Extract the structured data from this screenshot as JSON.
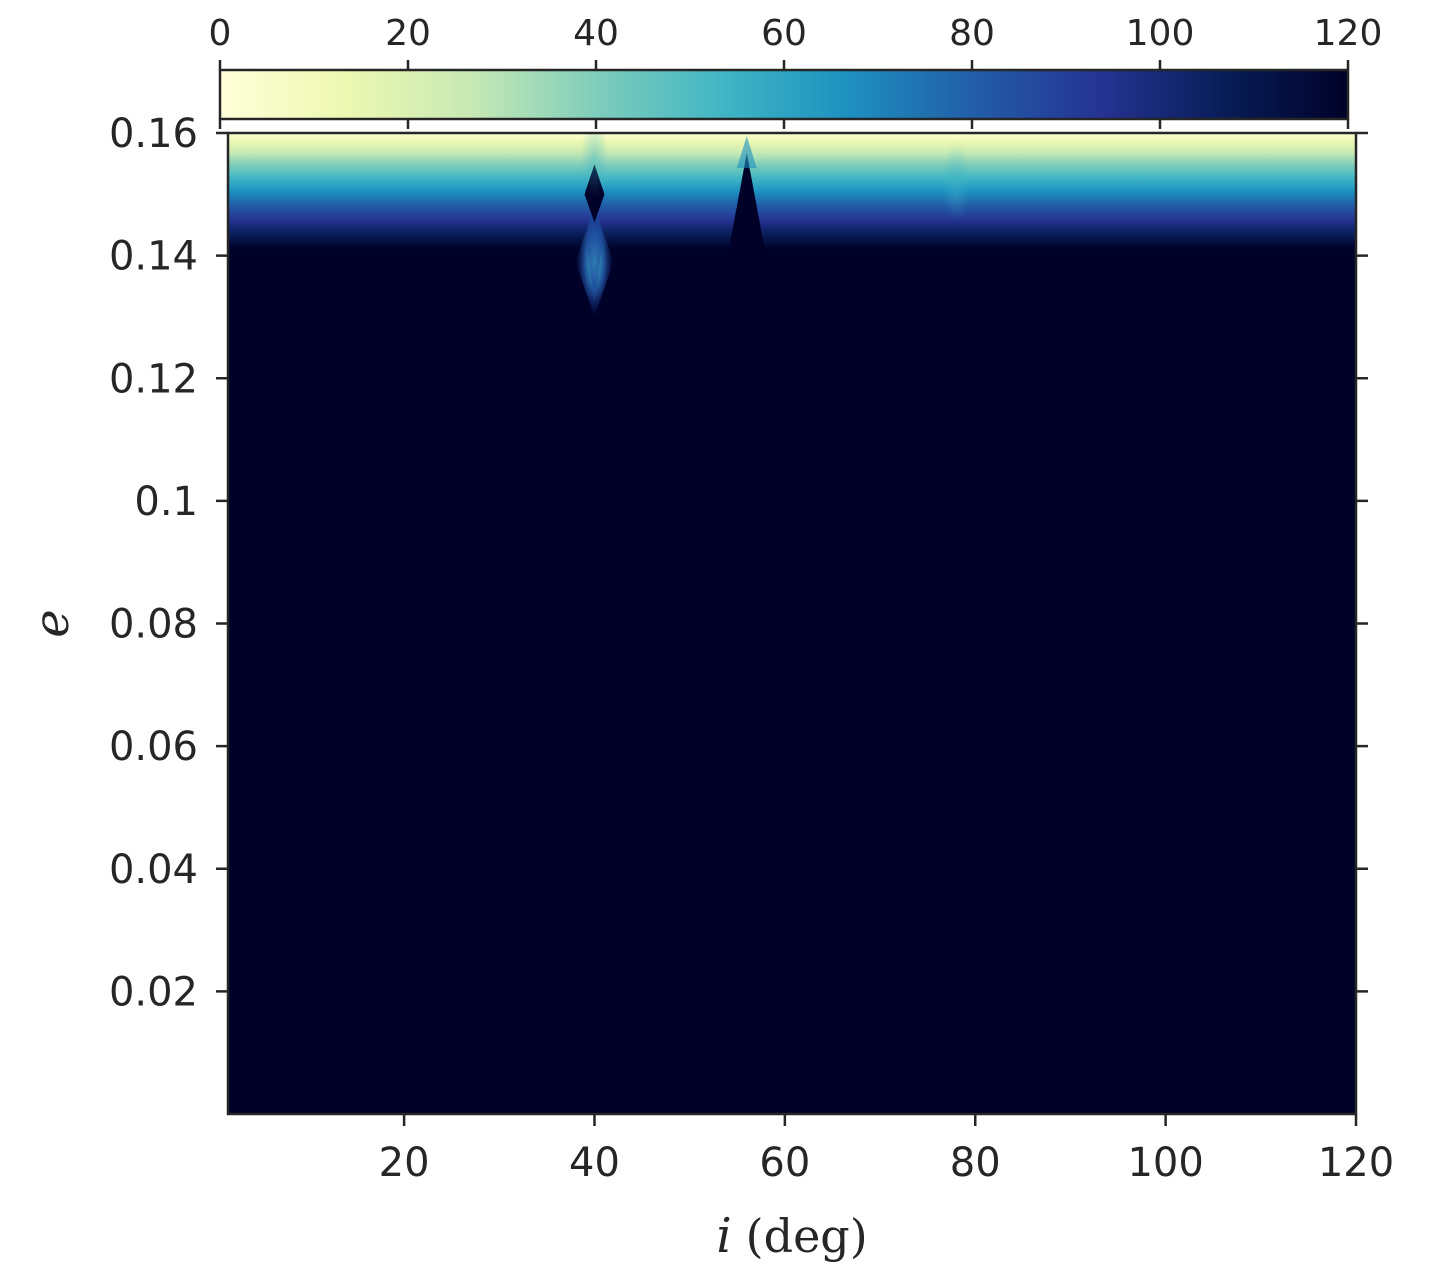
{
  "chart_data": {
    "type": "heatmap",
    "title": "",
    "xlabel_symbol": "i",
    "xlabel_unit": "(deg)",
    "ylabel": "e",
    "xlim": [
      1.5,
      120
    ],
    "ylim": [
      0,
      0.16
    ],
    "x_ticks": [
      "20",
      "40",
      "60",
      "80",
      "100",
      "120"
    ],
    "y_ticks": [
      "0.02",
      "0.04",
      "0.06",
      "0.08",
      "0.1",
      "0.12",
      "0.14",
      "0.16"
    ],
    "colorbar": {
      "location": "top",
      "range": [
        0,
        120
      ],
      "ticks": [
        "0",
        "20",
        "40",
        "60",
        "80",
        "100",
        "120"
      ],
      "colormap": "YlGnBu",
      "colors": [
        "#ffffd9",
        "#edf8b1",
        "#c7e9b4",
        "#7fcdbb",
        "#41b6c4",
        "#1d91c0",
        "#225ea8",
        "#253494",
        "#081d58",
        "#000128"
      ]
    },
    "features": [
      {
        "kind": "band",
        "e_range": [
          0.141,
          0.16
        ],
        "value_at_top": 0,
        "value_at_bottom": 120
      },
      {
        "kind": "spike",
        "i": 40,
        "e": 0.139,
        "value": 50
      },
      {
        "kind": "spike",
        "i": 40,
        "e": 0.15,
        "value": 120
      },
      {
        "kind": "peak",
        "i": 56,
        "e": 0.151,
        "value": 120
      },
      {
        "kind": "dip",
        "i": 40,
        "e": 0.156,
        "value": 60
      },
      {
        "kind": "dip",
        "i": 78,
        "e": 0.152,
        "value": 100
      }
    ],
    "background_value": 120
  }
}
